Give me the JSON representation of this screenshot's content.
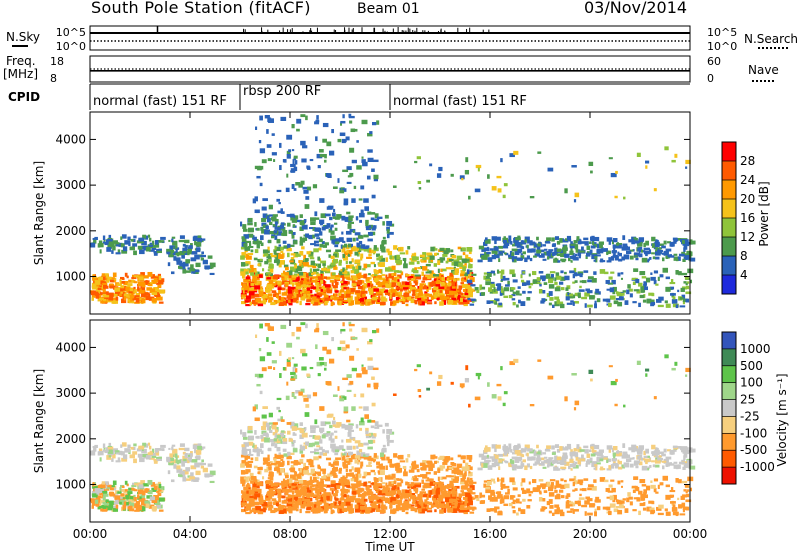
{
  "header": {
    "station": "South Pole Station (fitACF)",
    "beam": "Beam 01",
    "date": "03/Nov/2014"
  },
  "side_labels": {
    "nsky": "N.Sky",
    "freq_line1": "Freq.",
    "freq_line2": "[MHz]",
    "cpid": "CPID",
    "nsearch": "N.Search",
    "nave": "Nave"
  },
  "chart_data": [
    {
      "type": "line",
      "panel": "noise",
      "series": [
        {
          "name": "N.Sky",
          "y_axis": "left",
          "style": "solid",
          "ytick_labels": [
            "10^5",
            "10^0"
          ]
        },
        {
          "name": "N.Search",
          "y_axis": "right",
          "style": "dotted",
          "ytick_labels": [
            "10^5",
            "10^0"
          ]
        }
      ],
      "x": [
        "00:00",
        "24:00"
      ]
    },
    {
      "type": "line",
      "panel": "frequency_nave",
      "series": [
        {
          "name": "Freq. [MHz]",
          "y_axis": "left",
          "style": "solid",
          "value": 12.3,
          "yticks": [
            18,
            8
          ],
          "ylim": [
            8,
            18
          ]
        },
        {
          "name": "Nave",
          "y_axis": "right",
          "style": "dotted",
          "value": 30,
          "yticks": [
            60,
            0
          ],
          "ylim": [
            0,
            60
          ]
        }
      ]
    },
    {
      "type": "table",
      "panel": "cpid",
      "segments": [
        {
          "label": "normal (fast) 151 RF",
          "start_h": 0,
          "end_h": 6
        },
        {
          "label": "rbsp 200 RF",
          "start_h": 6,
          "end_h": 12
        },
        {
          "label": "normal (fast) 151 RF",
          "start_h": 12,
          "end_h": 24
        }
      ]
    },
    {
      "type": "heatmap",
      "panel": "power",
      "ylabel": "Slant Range [km]",
      "yticks": [
        1000,
        2000,
        3000,
        4000
      ],
      "ylim": [
        180,
        4600
      ],
      "colorbar_label": "Power [dB]",
      "colorbar_ticks": [
        "28",
        "24",
        "20",
        "16",
        "12",
        "8",
        "4"
      ],
      "colorbar_colors": [
        "#ff0000",
        "#ff5a00",
        "#ff9900",
        "#f5c21a",
        "#8fc43a",
        "#4c9a4c",
        "#2a62b8",
        "#1e2adc"
      ]
    },
    {
      "type": "heatmap",
      "panel": "velocity",
      "ylabel": "Slant Range [km]",
      "yticks": [
        1000,
        2000,
        3000,
        4000
      ],
      "ylim": [
        180,
        4600
      ],
      "xlabel": "Time UT",
      "xtick_labels": [
        "00:00",
        "04:00",
        "08:00",
        "12:00",
        "16:00",
        "20:00",
        "00:00"
      ],
      "colorbar_label": "Velocity [m s⁻¹]",
      "colorbar_ticks": [
        "1000",
        "500",
        "100",
        "25",
        "-25",
        "-100",
        "-500",
        "-1000"
      ],
      "colorbar_colors": [
        "#3355bb",
        "#3f8a56",
        "#5ec44a",
        "#9fd68a",
        "#c9c9c9",
        "#f6cf7e",
        "#ff9a2e",
        "#ff5a00",
        "#ee1100"
      ]
    }
  ]
}
